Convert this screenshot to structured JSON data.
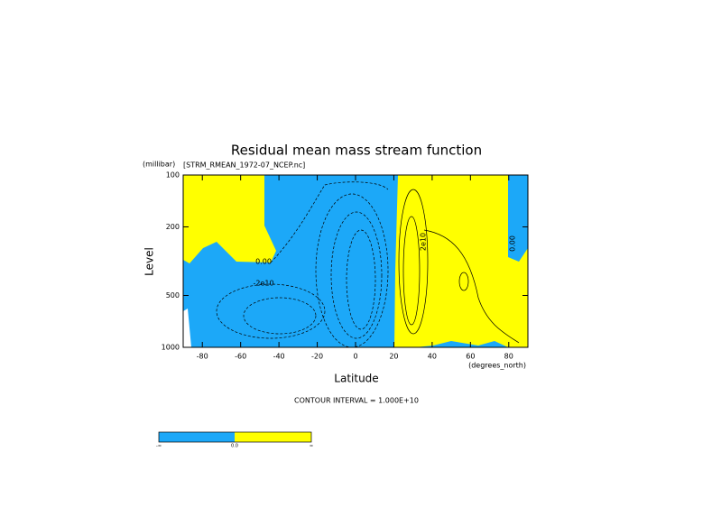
{
  "chart_data": {
    "type": "contour",
    "title": "Residual mean mass stream function",
    "subtitle": "[STRM_RMEAN_1972-07_NCEP.nc]",
    "y_unit": "(millibar)",
    "ylabel": "Level",
    "xlabel": "Latitude",
    "x_unit": "(degrees_north)",
    "footnote": "CONTOUR INTERVAL = 1.000E+10",
    "xlim": [
      -90,
      90
    ],
    "xticks": [
      -80,
      -60,
      -40,
      -20,
      0,
      20,
      40,
      60,
      80
    ],
    "ylim": [
      100,
      1000
    ],
    "yticks": [
      100,
      200,
      500,
      1000
    ],
    "ylog": true,
    "yinverted": true,
    "contour_labels": [
      "0.00",
      "-2e10",
      "2e10",
      "0.00"
    ],
    "colorbar": {
      "labels": [
        "-∞",
        "0.0",
        "∞"
      ],
      "colors": [
        "#1ca8f8",
        "#ffff00"
      ]
    }
  }
}
